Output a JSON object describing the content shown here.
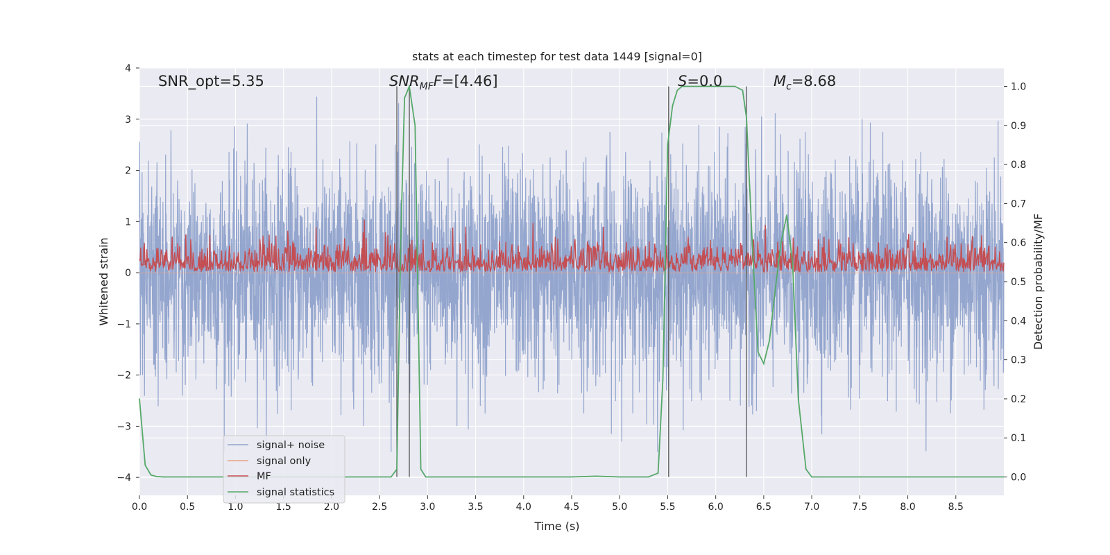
{
  "chart_data": {
    "type": "line",
    "title": "stats at each timestep for test data 1449 [signal=0]",
    "xlabel": "Time (s)",
    "ylabel": "Whitened strain",
    "y2label": "Detection probability/MF",
    "xlim": [
      0,
      9
    ],
    "ylim": [
      -4.35,
      4.0
    ],
    "y2lim": [
      -0.047,
      1.047
    ],
    "xticks": [
      "0.0",
      "0.5",
      "1.0",
      "1.5",
      "2.0",
      "2.5",
      "3.0",
      "3.5",
      "4.0",
      "4.5",
      "5.0",
      "5.5",
      "6.0",
      "6.5",
      "7.0",
      "7.5",
      "8.0",
      "8.5"
    ],
    "yticks": [
      "4",
      "3",
      "2",
      "1",
      "0",
      "−1",
      "−2",
      "−3",
      "−4"
    ],
    "y2ticks": [
      "1.0",
      "0.9",
      "0.8",
      "0.7",
      "0.6",
      "0.5",
      "0.4",
      "0.3",
      "0.2",
      "0.1",
      "0.0"
    ],
    "annotations": {
      "snr_opt": "SNR_opt=5.35",
      "snr_mf_main": "SNR",
      "snr_mf_sub": "MF",
      "snr_mf_value": "=[4.46]",
      "s_label": "S",
      "s_value": "=0.0",
      "mc_label": "M",
      "mc_sub": "c",
      "mc_value": "=8.68"
    },
    "legend": {
      "placement": "lower-left",
      "entries": [
        "signal+ noise",
        "signal only",
        "MF",
        "signal statistics"
      ]
    },
    "colors": {
      "noise": "#8fa2cb",
      "signal_only": "#e8a184",
      "mf": "#c44e52",
      "stats": "#55a868",
      "vline": "#555555",
      "plot_bg": "#eaeaf2",
      "grid": "#ffffff"
    },
    "vertical_lines_s": [
      2.68,
      2.81,
      5.51,
      6.32
    ],
    "series": [
      {
        "name": "signal statistics",
        "axis": "right",
        "x": [
          0.0,
          0.06,
          0.12,
          0.18,
          0.25,
          0.5,
          1.0,
          1.5,
          2.0,
          2.5,
          2.62,
          2.68,
          2.72,
          2.76,
          2.81,
          2.87,
          2.93,
          2.98,
          3.05,
          3.5,
          4.0,
          4.5,
          4.75,
          5.0,
          5.3,
          5.4,
          5.45,
          5.5,
          5.55,
          5.6,
          5.65,
          5.7,
          5.8,
          6.0,
          6.2,
          6.28,
          6.32,
          6.38,
          6.44,
          6.5,
          6.56,
          6.62,
          6.68,
          6.74,
          6.8,
          6.86,
          6.94,
          7.0,
          7.1,
          7.5,
          8.0,
          8.5,
          9.0
        ],
        "values": [
          0.2,
          0.03,
          0.005,
          0.001,
          0.0,
          0.0,
          0.0,
          0.0,
          0.0,
          0.0,
          0.0,
          0.02,
          0.6,
          0.97,
          1.0,
          0.9,
          0.02,
          0.0,
          0.0,
          0.0,
          0.0,
          0.0,
          0.002,
          0.0,
          0.0,
          0.01,
          0.25,
          0.85,
          0.95,
          0.99,
          1.0,
          1.0,
          1.0,
          1.0,
          1.0,
          0.99,
          0.92,
          0.6,
          0.32,
          0.29,
          0.35,
          0.48,
          0.6,
          0.67,
          0.55,
          0.2,
          0.02,
          0.0,
          0.0,
          0.0,
          0.0,
          0.0,
          0.0
        ]
      },
      {
        "name": "signal+ noise",
        "axis": "left",
        "description": "whitened noise samples ~ N(0,1), amplitude range about -3.5..4, no injected signal"
      },
      {
        "name": "MF",
        "axis": "right",
        "description": "matched filter output fluctuating about 0.5 to 0.6, range roughly 0.5..0.67"
      },
      {
        "name": "signal only",
        "axis": "left",
        "description": "zero (signal=0)"
      }
    ]
  }
}
